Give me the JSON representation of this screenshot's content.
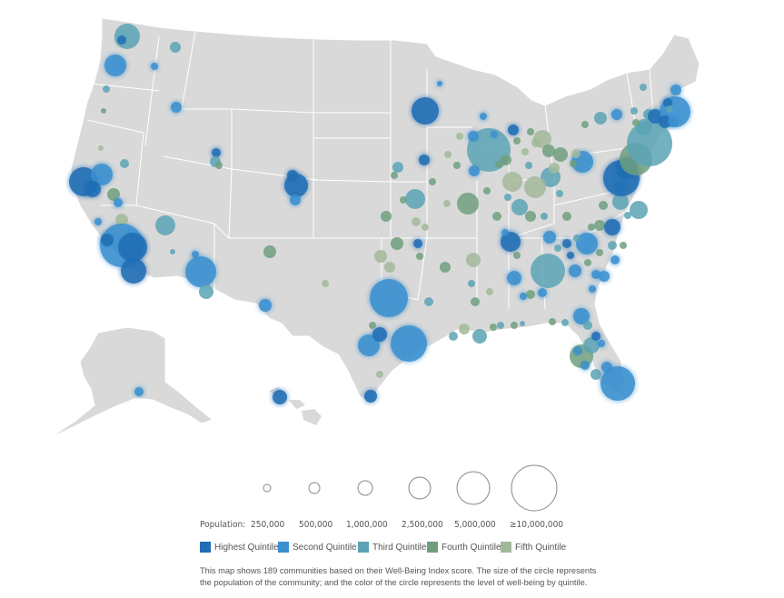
{
  "colors": {
    "highest_quintile": "#1f6db4",
    "second_quintile": "#3a8fcf",
    "third_quintile": "#5ba3b5",
    "fourth_quintile": "#6e9f7e",
    "fifth_quintile": "#a2b99a",
    "land": "#d9d9d9",
    "border": "#ffffff"
  },
  "population_legend": {
    "label": "Population:",
    "items": [
      "250,000",
      "500,000",
      "1,000,000",
      "2,500,000",
      "5,000,000",
      "≥10,000,000"
    ]
  },
  "quintile_legend": {
    "items": [
      {
        "label": "Highest Quintile",
        "color_key": "highest_quintile"
      },
      {
        "label": "Second Quintile",
        "color_key": "second_quintile"
      },
      {
        "label": "Third Quintile",
        "color_key": "third_quintile"
      },
      {
        "label": "Fourth Quintile",
        "color_key": "fourth_quintile"
      },
      {
        "label": "Fifth Quintile",
        "color_key": "fifth_quintile"
      }
    ]
  },
  "note": {
    "line1": "This map shows 189 communities based on their Well-Being Index score. The size of the circle represents",
    "line2": "the population of the community; and the color of the circle represents the level of well-being by quintile."
  }
}
